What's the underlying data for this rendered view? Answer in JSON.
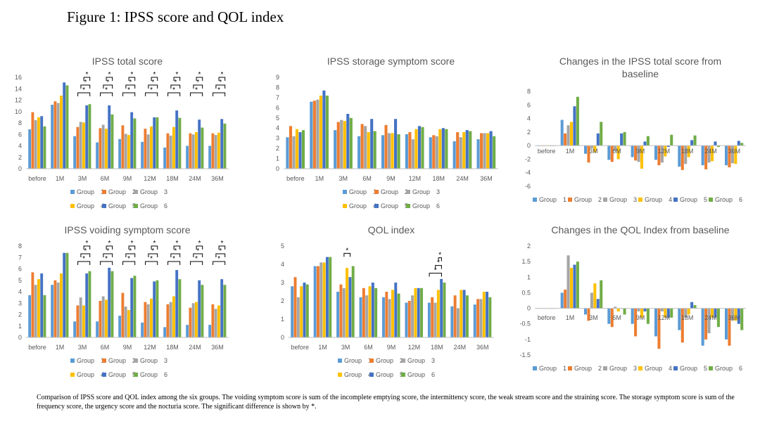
{
  "figure_title": "Figure 1: IPSS score and QOL index",
  "caption": "Comparison of IPSS score and QOL index among the six groups. The voiding symptom score is sum of the incomplete emptying score, the intermittency score, the weak stream score and the straining score. The storage symptom score is sum of the frequency score, the urgency score and the nocturia score. The significant difference is shown by *.",
  "colors": [
    "#5b9bd5",
    "#ed7d31",
    "#a5a5a5",
    "#ffc000",
    "#4472c4",
    "#70ad47"
  ],
  "legend_labels": [
    "Group　1",
    "Group　2",
    "Group　3",
    "Group　4",
    "Group　5",
    "Group　6"
  ],
  "chart_data": [
    {
      "type": "bar",
      "title": "IPSS total score",
      "categories": [
        "before",
        "1M",
        "3M",
        "6M",
        "9M",
        "12M",
        "18M",
        "24M",
        "36M"
      ],
      "ylim": [
        0,
        16
      ],
      "yticks": [
        0,
        2,
        4,
        6,
        8,
        10,
        12,
        14,
        16
      ],
      "grid": false,
      "legend": "bottom",
      "series": [
        {
          "name": "Group 1",
          "values": [
            6.9,
            11.2,
            5.7,
            4.6,
            5.2,
            4.7,
            3.7,
            4.0,
            4.0
          ]
        },
        {
          "name": "Group 2",
          "values": [
            9.9,
            11.8,
            7.3,
            7.1,
            7.6,
            7.0,
            6.2,
            6.2,
            6.2
          ]
        },
        {
          "name": "Group 3",
          "values": [
            8.5,
            11.5,
            8.2,
            7.7,
            6.1,
            6.0,
            5.8,
            6.0,
            5.9
          ]
        },
        {
          "name": "Group 4",
          "values": [
            9.0,
            12.8,
            8.1,
            7.0,
            5.9,
            7.4,
            7.3,
            6.4,
            6.3
          ]
        },
        {
          "name": "Group 5",
          "values": [
            9.2,
            15.1,
            11.1,
            11.1,
            9.9,
            9.0,
            10.2,
            8.6,
            8.7
          ]
        },
        {
          "name": "Group 6",
          "values": [
            7.4,
            14.6,
            11.3,
            9.5,
            8.8,
            9.0,
            8.9,
            7.2,
            7.9
          ]
        }
      ],
      "significance": [
        {
          "from": 2,
          "to": 6,
          "label": "*"
        },
        {
          "from": 3,
          "to": 6,
          "label": "*"
        },
        {
          "from": 4,
          "to": 6,
          "label": "*"
        }
      ]
    },
    {
      "type": "bar",
      "title": "IPSS storage symptom score",
      "categories": [
        "before",
        "1M",
        "3M",
        "6M",
        "9M",
        "12M",
        "18M",
        "24M",
        "36M"
      ],
      "ylim": [
        0,
        9
      ],
      "yticks": [
        0,
        1,
        2,
        3,
        4,
        5,
        6,
        7,
        8,
        9
      ],
      "grid": false,
      "legend": "bottom",
      "series": [
        {
          "name": "Group 1",
          "values": [
            3.1,
            6.6,
            3.8,
            3.2,
            3.3,
            3.4,
            3.1,
            2.7,
            2.9
          ]
        },
        {
          "name": "Group 2",
          "values": [
            4.2,
            6.7,
            4.6,
            4.4,
            4.3,
            3.6,
            3.3,
            3.6,
            3.5
          ]
        },
        {
          "name": "Group 3",
          "values": [
            3.2,
            6.8,
            4.8,
            4.2,
            3.5,
            2.9,
            3.2,
            3.1,
            3.5
          ]
        },
        {
          "name": "Group 4",
          "values": [
            3.9,
            7.2,
            4.7,
            3.6,
            3.5,
            3.9,
            3.9,
            3.6,
            3.5
          ]
        },
        {
          "name": "Group 5",
          "values": [
            3.6,
            7.7,
            5.4,
            4.9,
            4.9,
            4.2,
            4.0,
            3.8,
            3.7
          ]
        },
        {
          "name": "Group 6",
          "values": [
            3.8,
            7.2,
            5.0,
            3.7,
            3.4,
            4.1,
            3.9,
            3.7,
            3.2
          ]
        }
      ],
      "significance": []
    },
    {
      "type": "bar",
      "title": "Changes in the IPSS total score from baseline",
      "categories": [
        "before",
        "1M",
        "3M",
        "6M",
        "9M",
        "12M",
        "18M",
        "24M",
        "36M"
      ],
      "ylim": [
        -6,
        8
      ],
      "yticks": [
        -6,
        -4,
        -2,
        0,
        2,
        4,
        6,
        8
      ],
      "grid": false,
      "legend": "bottom",
      "series": [
        {
          "name": "Group 1",
          "values": [
            0,
            3.8,
            -1.2,
            -2.1,
            -1.7,
            -2.1,
            -3.1,
            -2.9,
            -2.9
          ]
        },
        {
          "name": "Group 2",
          "values": [
            0,
            1.8,
            -2.5,
            -2.4,
            -2.2,
            -2.9,
            -3.6,
            -3.5,
            -3.2
          ]
        },
        {
          "name": "Group 3",
          "values": [
            0,
            3.0,
            -0.4,
            -0.8,
            -2.4,
            -2.5,
            -2.7,
            -2.5,
            -2.6
          ]
        },
        {
          "name": "Group 4",
          "values": [
            0,
            3.5,
            -1.0,
            -2.0,
            -3.4,
            -1.6,
            -1.7,
            -2.3,
            -2.7
          ]
        },
        {
          "name": "Group 5",
          "values": [
            0,
            5.8,
            1.8,
            1.8,
            0.6,
            -0.2,
            0.8,
            0.6,
            0.7
          ]
        },
        {
          "name": "Group 6",
          "values": [
            0,
            7.2,
            3.5,
            2.0,
            1.4,
            1.6,
            1.5,
            -0.2,
            0.4
          ]
        }
      ],
      "significance": []
    },
    {
      "type": "bar",
      "title": "IPSS voiding symptom score",
      "categories": [
        "before",
        "1M",
        "3M",
        "6M",
        "9M",
        "12M",
        "18M",
        "24M",
        "36M"
      ],
      "ylim": [
        0,
        8
      ],
      "yticks": [
        0,
        1,
        2,
        3,
        4,
        5,
        6,
        7,
        8
      ],
      "grid": false,
      "legend": "bottom",
      "series": [
        {
          "name": "Group 1",
          "values": [
            3.7,
            4.6,
            1.4,
            1.4,
            1.9,
            1.3,
            0.9,
            1.1,
            1.1
          ]
        },
        {
          "name": "Group 2",
          "values": [
            5.7,
            5.0,
            2.8,
            3.2,
            3.9,
            3.1,
            2.9,
            2.6,
            2.9
          ]
        },
        {
          "name": "Group 3",
          "values": [
            4.6,
            4.8,
            3.5,
            3.6,
            2.7,
            2.9,
            3.1,
            3.0,
            2.5
          ]
        },
        {
          "name": "Group 4",
          "values": [
            5.1,
            5.6,
            2.8,
            3.3,
            2.4,
            3.4,
            3.6,
            3.1,
            2.8
          ]
        },
        {
          "name": "Group 5",
          "values": [
            5.6,
            7.4,
            5.6,
            6.1,
            5.2,
            4.9,
            5.9,
            5.0,
            5.1
          ]
        },
        {
          "name": "Group 6",
          "values": [
            3.7,
            7.4,
            5.8,
            5.8,
            5.4,
            5.0,
            5.1,
            4.6,
            4.6
          ]
        }
      ],
      "significance": [
        {
          "from": 2,
          "to": 6,
          "label": "*"
        },
        {
          "from": 3,
          "to": 6,
          "label": "*"
        },
        {
          "from": 4,
          "to": 6,
          "label": "*"
        }
      ]
    },
    {
      "type": "bar",
      "title": "QOL index",
      "categories": [
        "before",
        "1M",
        "3M",
        "6M",
        "9M",
        "12M",
        "18M",
        "24M",
        "36M"
      ],
      "ylim": [
        0,
        5
      ],
      "yticks": [
        0,
        1,
        2,
        3,
        4,
        5
      ],
      "grid": false,
      "legend": "bottom",
      "series": [
        {
          "name": "Group 1",
          "values": [
            2.8,
            3.9,
            2.5,
            2.2,
            2.2,
            1.9,
            1.9,
            1.7,
            1.8
          ]
        },
        {
          "name": "Group 2",
          "values": [
            3.3,
            3.9,
            2.9,
            2.7,
            2.5,
            2.0,
            2.2,
            2.3,
            2.1
          ]
        },
        {
          "name": "Group 3",
          "values": [
            2.2,
            4.1,
            2.7,
            2.3,
            2.1,
            2.3,
            1.9,
            1.6,
            2.1
          ]
        },
        {
          "name": "Group 4",
          "values": [
            2.8,
            4.1,
            3.8,
            2.8,
            2.6,
            2.7,
            2.6,
            2.6,
            2.5
          ]
        },
        {
          "name": "Group 5",
          "values": [
            3.0,
            4.4,
            3.3,
            3.0,
            3.0,
            2.7,
            3.2,
            2.6,
            2.5
          ]
        },
        {
          "name": "Group 6",
          "values": [
            2.9,
            4.4,
            3.9,
            2.7,
            2.4,
            2.7,
            3.0,
            2.3,
            2.2
          ]
        }
      ],
      "significance": [
        {
          "from": 3,
          "to": 5,
          "label": "*"
        }
      ],
      "significance_18m": [
        {
          "from": 1,
          "to": 5,
          "label": "*"
        },
        {
          "from": 3,
          "to": 5,
          "label": "*"
        },
        {
          "from": 4,
          "to": 5,
          "label": "*"
        }
      ]
    },
    {
      "type": "bar",
      "title": "Changes in the QOL Index from baseline",
      "categories": [
        "before",
        "1M",
        "3M",
        "6M",
        "9M",
        "12M",
        "18M",
        "24M",
        "36M"
      ],
      "ylim": [
        -1.5,
        2
      ],
      "yticks": [
        -1.5,
        -1,
        -0.5,
        0,
        0.5,
        1,
        1.5,
        2
      ],
      "grid": false,
      "legend": "bottom",
      "series": [
        {
          "name": "Group 1",
          "values": [
            0,
            0.5,
            -0.2,
            -0.5,
            -0.5,
            -0.9,
            -0.7,
            -1.2,
            -1.0
          ]
        },
        {
          "name": "Group 2",
          "values": [
            0,
            0.6,
            -0.4,
            -0.6,
            -0.9,
            -1.3,
            -1.1,
            -1.0,
            -1.2
          ]
        },
        {
          "name": "Group 3",
          "values": [
            0,
            1.7,
            0.5,
            0.05,
            -0.1,
            -0.1,
            -0.3,
            -0.8,
            -0.4
          ]
        },
        {
          "name": "Group 4",
          "values": [
            0,
            1.3,
            0.8,
            -0.1,
            -0.3,
            -0.3,
            -0.2,
            -0.3,
            -0.4
          ]
        },
        {
          "name": "Group 5",
          "values": [
            0,
            1.4,
            0.3,
            0.0,
            -0.1,
            -0.3,
            0.2,
            -0.3,
            -0.5
          ]
        },
        {
          "name": "Group 6",
          "values": [
            0,
            1.5,
            0.9,
            -0.2,
            -0.5,
            -0.3,
            0.1,
            -0.6,
            -0.7
          ]
        }
      ],
      "significance": []
    }
  ]
}
